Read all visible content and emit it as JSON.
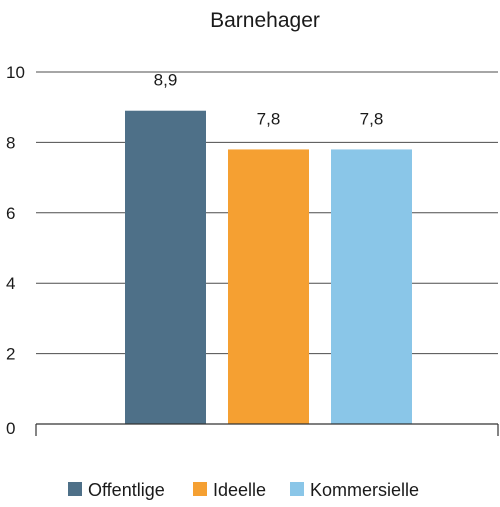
{
  "chart_data": {
    "type": "bar",
    "title": "Barnehager",
    "xlabel": "",
    "ylabel": "",
    "ylim": [
      0,
      10
    ],
    "yticks": [
      0,
      2,
      4,
      6,
      8,
      10
    ],
    "grid": true,
    "legend_position": "bottom",
    "series": [
      {
        "name": "Offentlige",
        "value": 8.9,
        "label": "8,9",
        "color": "#4e7088"
      },
      {
        "name": "Ideelle",
        "value": 7.8,
        "label": "7,8",
        "color": "#f5a032"
      },
      {
        "name": "Kommersielle",
        "value": 7.8,
        "label": "7,8",
        "color": "#8ac6e8"
      }
    ]
  }
}
